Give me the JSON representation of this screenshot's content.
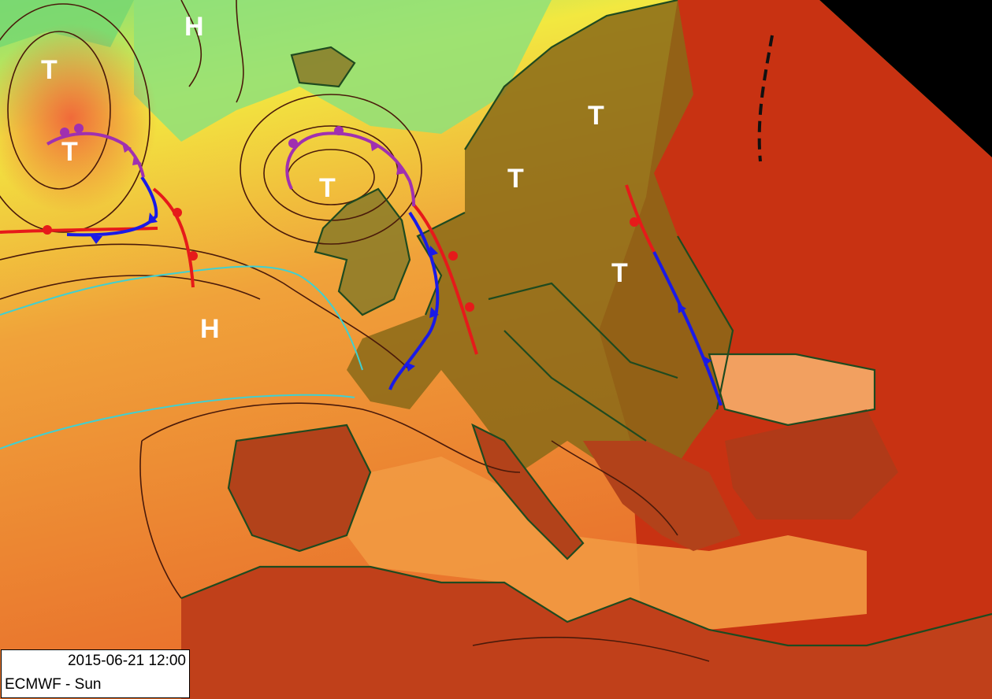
{
  "map": {
    "info_box": {
      "datetime": "2015-06-21 12:00",
      "source": "ECMWF - Sun"
    },
    "pressure_labels": [
      {
        "text": "T",
        "type": "low"
      },
      {
        "text": "T",
        "type": "low"
      },
      {
        "text": "H",
        "type": "high"
      },
      {
        "text": "T",
        "type": "low"
      },
      {
        "text": "H",
        "type": "high"
      },
      {
        "text": "T",
        "type": "low"
      },
      {
        "text": "T",
        "type": "low"
      },
      {
        "text": "T",
        "type": "low"
      }
    ],
    "colors": {
      "cold_front": "#1a1ae6",
      "warm_front": "#e61a1a",
      "occluded_front": "#a030b0",
      "isotherm": "#40d0d0",
      "coastline": "#1f4a1f",
      "hot": "#c83212",
      "warm": "#f08a2a",
      "mild": "#f2e840",
      "cool": "#7ee07a"
    }
  }
}
